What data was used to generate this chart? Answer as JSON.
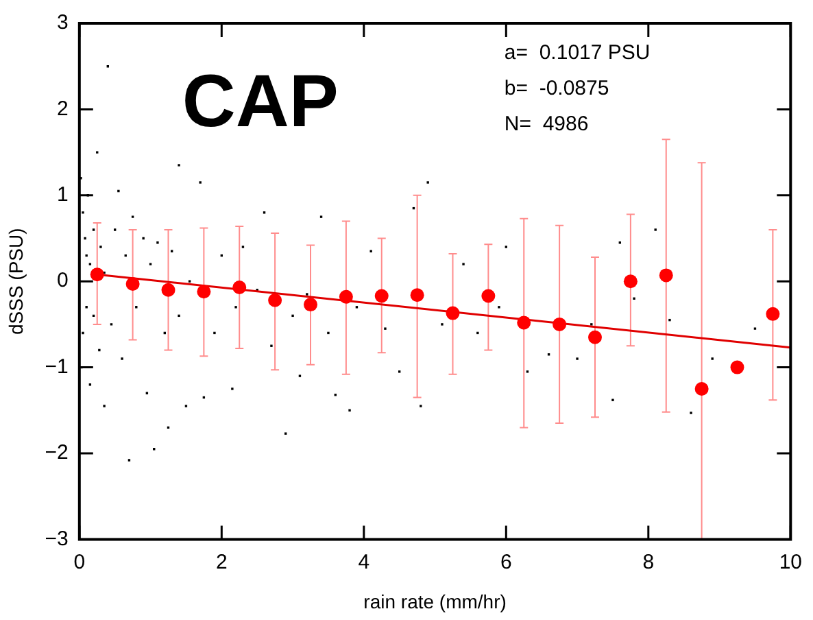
{
  "chart_data": {
    "type": "scatter",
    "xlabel": "rain rate (mm/hr)",
    "ylabel": "dSSS (PSU)",
    "annotations": [
      "CAP",
      "a=  0.1017 PSU",
      "b=  -0.0875",
      "N=  4986"
    ],
    "xlim": [
      0,
      10
    ],
    "ylim": [
      -3,
      3
    ],
    "xticks": [
      0,
      2,
      4,
      6,
      8,
      10
    ],
    "yticks": [
      -3,
      -2,
      -1,
      0,
      1,
      2,
      3
    ],
    "grid": false,
    "legend": false,
    "series": [
      {
        "color": "#000000",
        "marker": "square",
        "x": [
          0.02,
          0.03,
          0.05,
          0.05,
          0.08,
          0.1,
          0.1,
          0.12,
          0.15,
          0.15,
          0.2,
          0.2,
          0.25,
          0.28,
          0.3,
          0.35,
          0.35,
          0.4,
          0.45,
          0.5,
          0.55,
          0.6,
          0.65,
          0.7,
          0.75,
          0.8,
          0.9,
          0.95,
          1.0,
          1.05,
          1.1,
          1.2,
          1.25,
          1.3,
          1.4,
          1.4,
          1.5,
          1.55,
          1.7,
          1.75,
          1.9,
          2.0,
          2.15,
          2.2,
          2.3,
          2.5,
          2.6,
          2.7,
          2.9,
          3.0,
          3.1,
          3.2,
          3.4,
          3.5,
          3.6,
          3.8,
          3.9,
          4.1,
          4.3,
          4.5,
          4.7,
          4.8,
          4.9,
          5.1,
          5.4,
          5.6,
          5.9,
          6.0,
          6.3,
          6.6,
          7.0,
          7.2,
          7.5,
          7.6,
          7.8,
          8.1,
          8.3,
          8.6,
          8.9,
          9.5
        ],
        "values": [
          1.2,
          -1.0,
          0.8,
          -0.6,
          0.5,
          -0.3,
          0.3,
          1.0,
          -1.2,
          0.2,
          -0.4,
          0.6,
          1.5,
          -0.8,
          0.4,
          -1.45,
          0.1,
          2.5,
          -0.5,
          0.6,
          1.05,
          -0.9,
          0.3,
          -2.08,
          0.75,
          -0.3,
          0.5,
          -1.3,
          0.2,
          -1.95,
          0.45,
          -0.6,
          -1.7,
          0.35,
          1.35,
          -0.4,
          -1.45,
          0.0,
          1.15,
          -1.35,
          -0.6,
          0.3,
          -1.25,
          -0.3,
          0.4,
          -0.1,
          0.8,
          -0.75,
          -1.77,
          -0.4,
          -1.1,
          -0.15,
          0.75,
          -0.6,
          -1.32,
          -1.5,
          -0.3,
          0.35,
          -0.55,
          -1.05,
          0.85,
          -1.45,
          1.15,
          -0.5,
          0.2,
          -0.6,
          -0.3,
          0.4,
          -1.05,
          -0.85,
          -0.9,
          -0.5,
          -1.38,
          0.45,
          -0.2,
          0.6,
          -0.45,
          -1.53,
          -0.9,
          -0.55
        ]
      },
      {
        "color": "#ff0000",
        "marker": "circle",
        "x": [
          0.25,
          0.75,
          1.25,
          1.75,
          2.25,
          2.75,
          3.25,
          3.75,
          4.25,
          4.75,
          5.25,
          5.75,
          6.25,
          6.75,
          7.25,
          7.75,
          8.25,
          8.75,
          9.25,
          9.75
        ],
        "values": [
          0.08,
          -0.03,
          -0.1,
          -0.12,
          -0.07,
          -0.22,
          -0.27,
          -0.18,
          -0.17,
          -0.16,
          -0.37,
          -0.17,
          -0.48,
          -0.5,
          -0.65,
          0.0,
          0.07,
          -1.25,
          -1.0,
          -0.38
        ],
        "errors": [
          [
            -0.5,
            0.68
          ],
          [
            -0.68,
            0.6
          ],
          [
            -0.8,
            0.6
          ],
          [
            -0.87,
            0.62
          ],
          [
            -0.78,
            0.64
          ],
          [
            -1.03,
            0.56
          ],
          [
            -0.97,
            0.42
          ],
          [
            -1.08,
            0.7
          ],
          [
            -0.83,
            0.5
          ],
          [
            -1.35,
            1.0
          ],
          [
            -1.08,
            0.32
          ],
          [
            -0.8,
            0.43
          ],
          [
            -1.7,
            0.73
          ],
          [
            -1.65,
            0.65
          ],
          [
            -1.58,
            0.28
          ],
          [
            -0.75,
            0.78
          ],
          [
            -1.52,
            1.65
          ],
          [
            -3,
            1.38
          ],
          null,
          [
            -1.38,
            0.6
          ]
        ]
      },
      {
        "type": "line",
        "color": "#e00000",
        "x": [
          0.25,
          10
        ],
        "values": [
          0.08,
          -0.77
        ]
      }
    ]
  }
}
